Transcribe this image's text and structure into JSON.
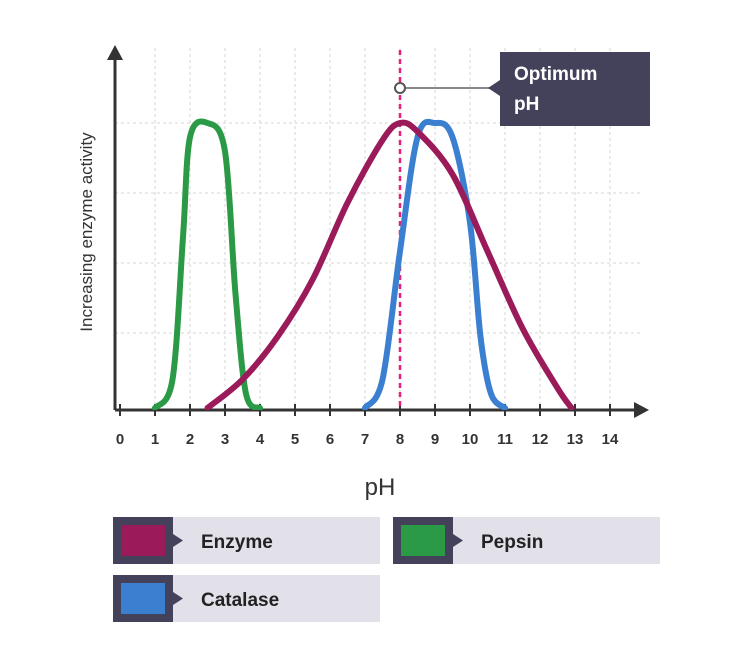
{
  "chart_data": {
    "type": "line",
    "xlabel": "pH",
    "ylabel": "Increasing enzyme activity",
    "xlim": [
      0,
      14
    ],
    "xticks": [
      "0",
      "1",
      "2",
      "3",
      "4",
      "5",
      "6",
      "7",
      "8",
      "9",
      "10",
      "11",
      "12",
      "13",
      "14"
    ],
    "highlight_x": 8,
    "annotation": "Optimum pH",
    "grid": true,
    "series": [
      {
        "name": "Enzyme",
        "color": "#9b1b5a",
        "x": [
          2.5,
          3.5,
          4.5,
          5.5,
          6.5,
          7.5,
          8.0,
          8.5,
          9.5,
          10.5,
          11.5,
          12.5,
          12.9
        ],
        "y": [
          0.0,
          0.1,
          0.25,
          0.45,
          0.72,
          0.94,
          1.0,
          0.97,
          0.82,
          0.55,
          0.28,
          0.07,
          0.0
        ]
      },
      {
        "name": "Pepsin",
        "color": "#2a9a47",
        "x": [
          1.0,
          1.5,
          1.8,
          2.0,
          2.5,
          3.0,
          3.3,
          3.6,
          4.0
        ],
        "y": [
          0.0,
          0.1,
          0.6,
          0.95,
          1.0,
          0.9,
          0.4,
          0.05,
          0.0
        ]
      },
      {
        "name": "Catalase",
        "color": "#3b7fd1",
        "x": [
          7.0,
          7.5,
          8.0,
          8.5,
          9.0,
          9.5,
          10.0,
          10.3,
          10.6,
          11.0
        ],
        "y": [
          0.0,
          0.1,
          0.55,
          0.95,
          1.0,
          0.95,
          0.65,
          0.25,
          0.05,
          0.0
        ]
      }
    ],
    "legend": [
      {
        "label": "Enzyme",
        "color": "#9b1b5a"
      },
      {
        "label": "Pepsin",
        "color": "#2a9a47"
      },
      {
        "label": "Catalase",
        "color": "#3b7fd1"
      }
    ]
  }
}
